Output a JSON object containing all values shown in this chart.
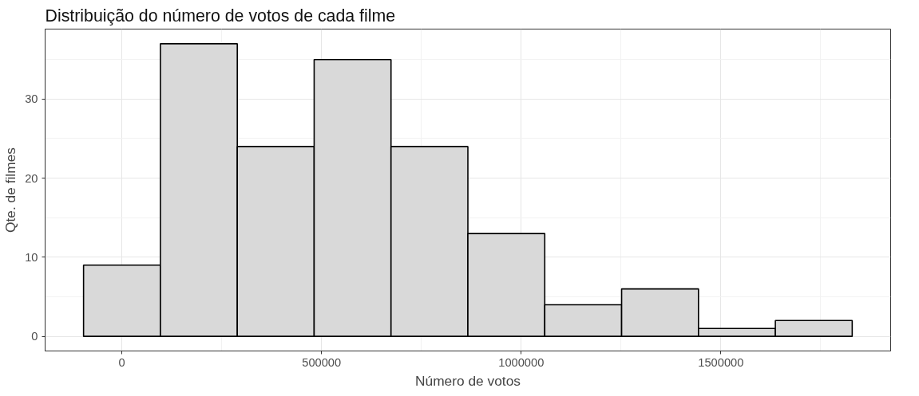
{
  "chart_data": {
    "type": "histogram",
    "title": "Distribuição do número de votos de cada filme",
    "xlabel": "Número de votos",
    "ylabel": "Qte. de filmes",
    "bins": [
      -96000,
      96500,
      289000,
      481500,
      674000,
      866500,
      1059000,
      1251500,
      1444000,
      1636500,
      1829000
    ],
    "values": [
      9,
      37,
      24,
      35,
      24,
      13,
      4,
      6,
      1,
      2
    ],
    "color": "#d9d9d9",
    "xlim": [
      -192250,
      1925250
    ],
    "xticks": [
      0,
      500000,
      1000000,
      1500000
    ],
    "ylim": [
      -1.85,
      38.85
    ],
    "yticks": [
      0,
      10,
      20,
      30
    ],
    "grid": true
  }
}
